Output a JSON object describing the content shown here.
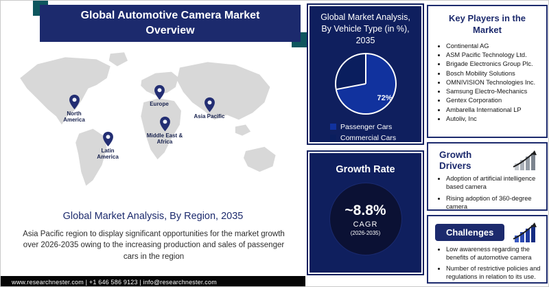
{
  "header": {
    "title": "Global Automotive Camera Market Overview"
  },
  "map": {
    "regions": [
      {
        "label": "North America"
      },
      {
        "label": "Latin America"
      },
      {
        "label": "Europe"
      },
      {
        "label": "Middle East & Africa"
      },
      {
        "label": "Asia Pacific"
      }
    ]
  },
  "region_section": {
    "title": "Global Market Analysis, By Region, 2035",
    "body": "Asia Pacific region to display significant opportunities  for the market growth over 2026-2035 owing to the  increasing production and sales of passenger cars in the region"
  },
  "footer": {
    "text": "www.researchnester.com | +1 646 586 9123 | info@researchnester.com"
  },
  "chart_data": {
    "type": "pie",
    "title": "Global Market Analysis, By Vehicle Type (in %), 2035",
    "labels": [
      "Passenger Cars",
      "Commercial Cars"
    ],
    "values": [
      72,
      28
    ],
    "colors": [
      "#11329e",
      "#0a1e5e"
    ],
    "data_labels": [
      "72%"
    ],
    "legend_position": "bottom"
  },
  "growth_rate_card": {
    "title": "Growth Rate",
    "value": "~8.8%",
    "metric": "CAGR",
    "period": "(2026-2035)"
  },
  "key_players": {
    "title": "Key Players in the Market",
    "items": [
      "Continental AG",
      "ASM Pacific Technology Ltd.",
      "Brigade Electronics Group Plc.",
      "Bosch Mobility Solutions",
      "OMNIVISION Technologies Inc.",
      "Samsung Electro-Mechanics",
      "Gentex Corporation",
      "Ambarella International LP",
      "Autoliv, Inc"
    ]
  },
  "growth_drivers": {
    "title": "Growth Drivers",
    "items": [
      "Adoption of artificial intelligence based camera",
      "Rising adoption of 360-degree camera"
    ]
  },
  "challenges": {
    "title": "Challenges",
    "items": [
      "Low awareness regarding the benefits of automotive camera",
      "Number of restrictive policies and regulations in relation to its use."
    ]
  },
  "colors": {
    "navy": "#1c2a6d",
    "card_navy": "#0f1f5e",
    "teal_accent": "#0e565e",
    "growth_circle": "#0b1134",
    "footer_black": "#060606",
    "map_gray": "#d8d8d8"
  }
}
